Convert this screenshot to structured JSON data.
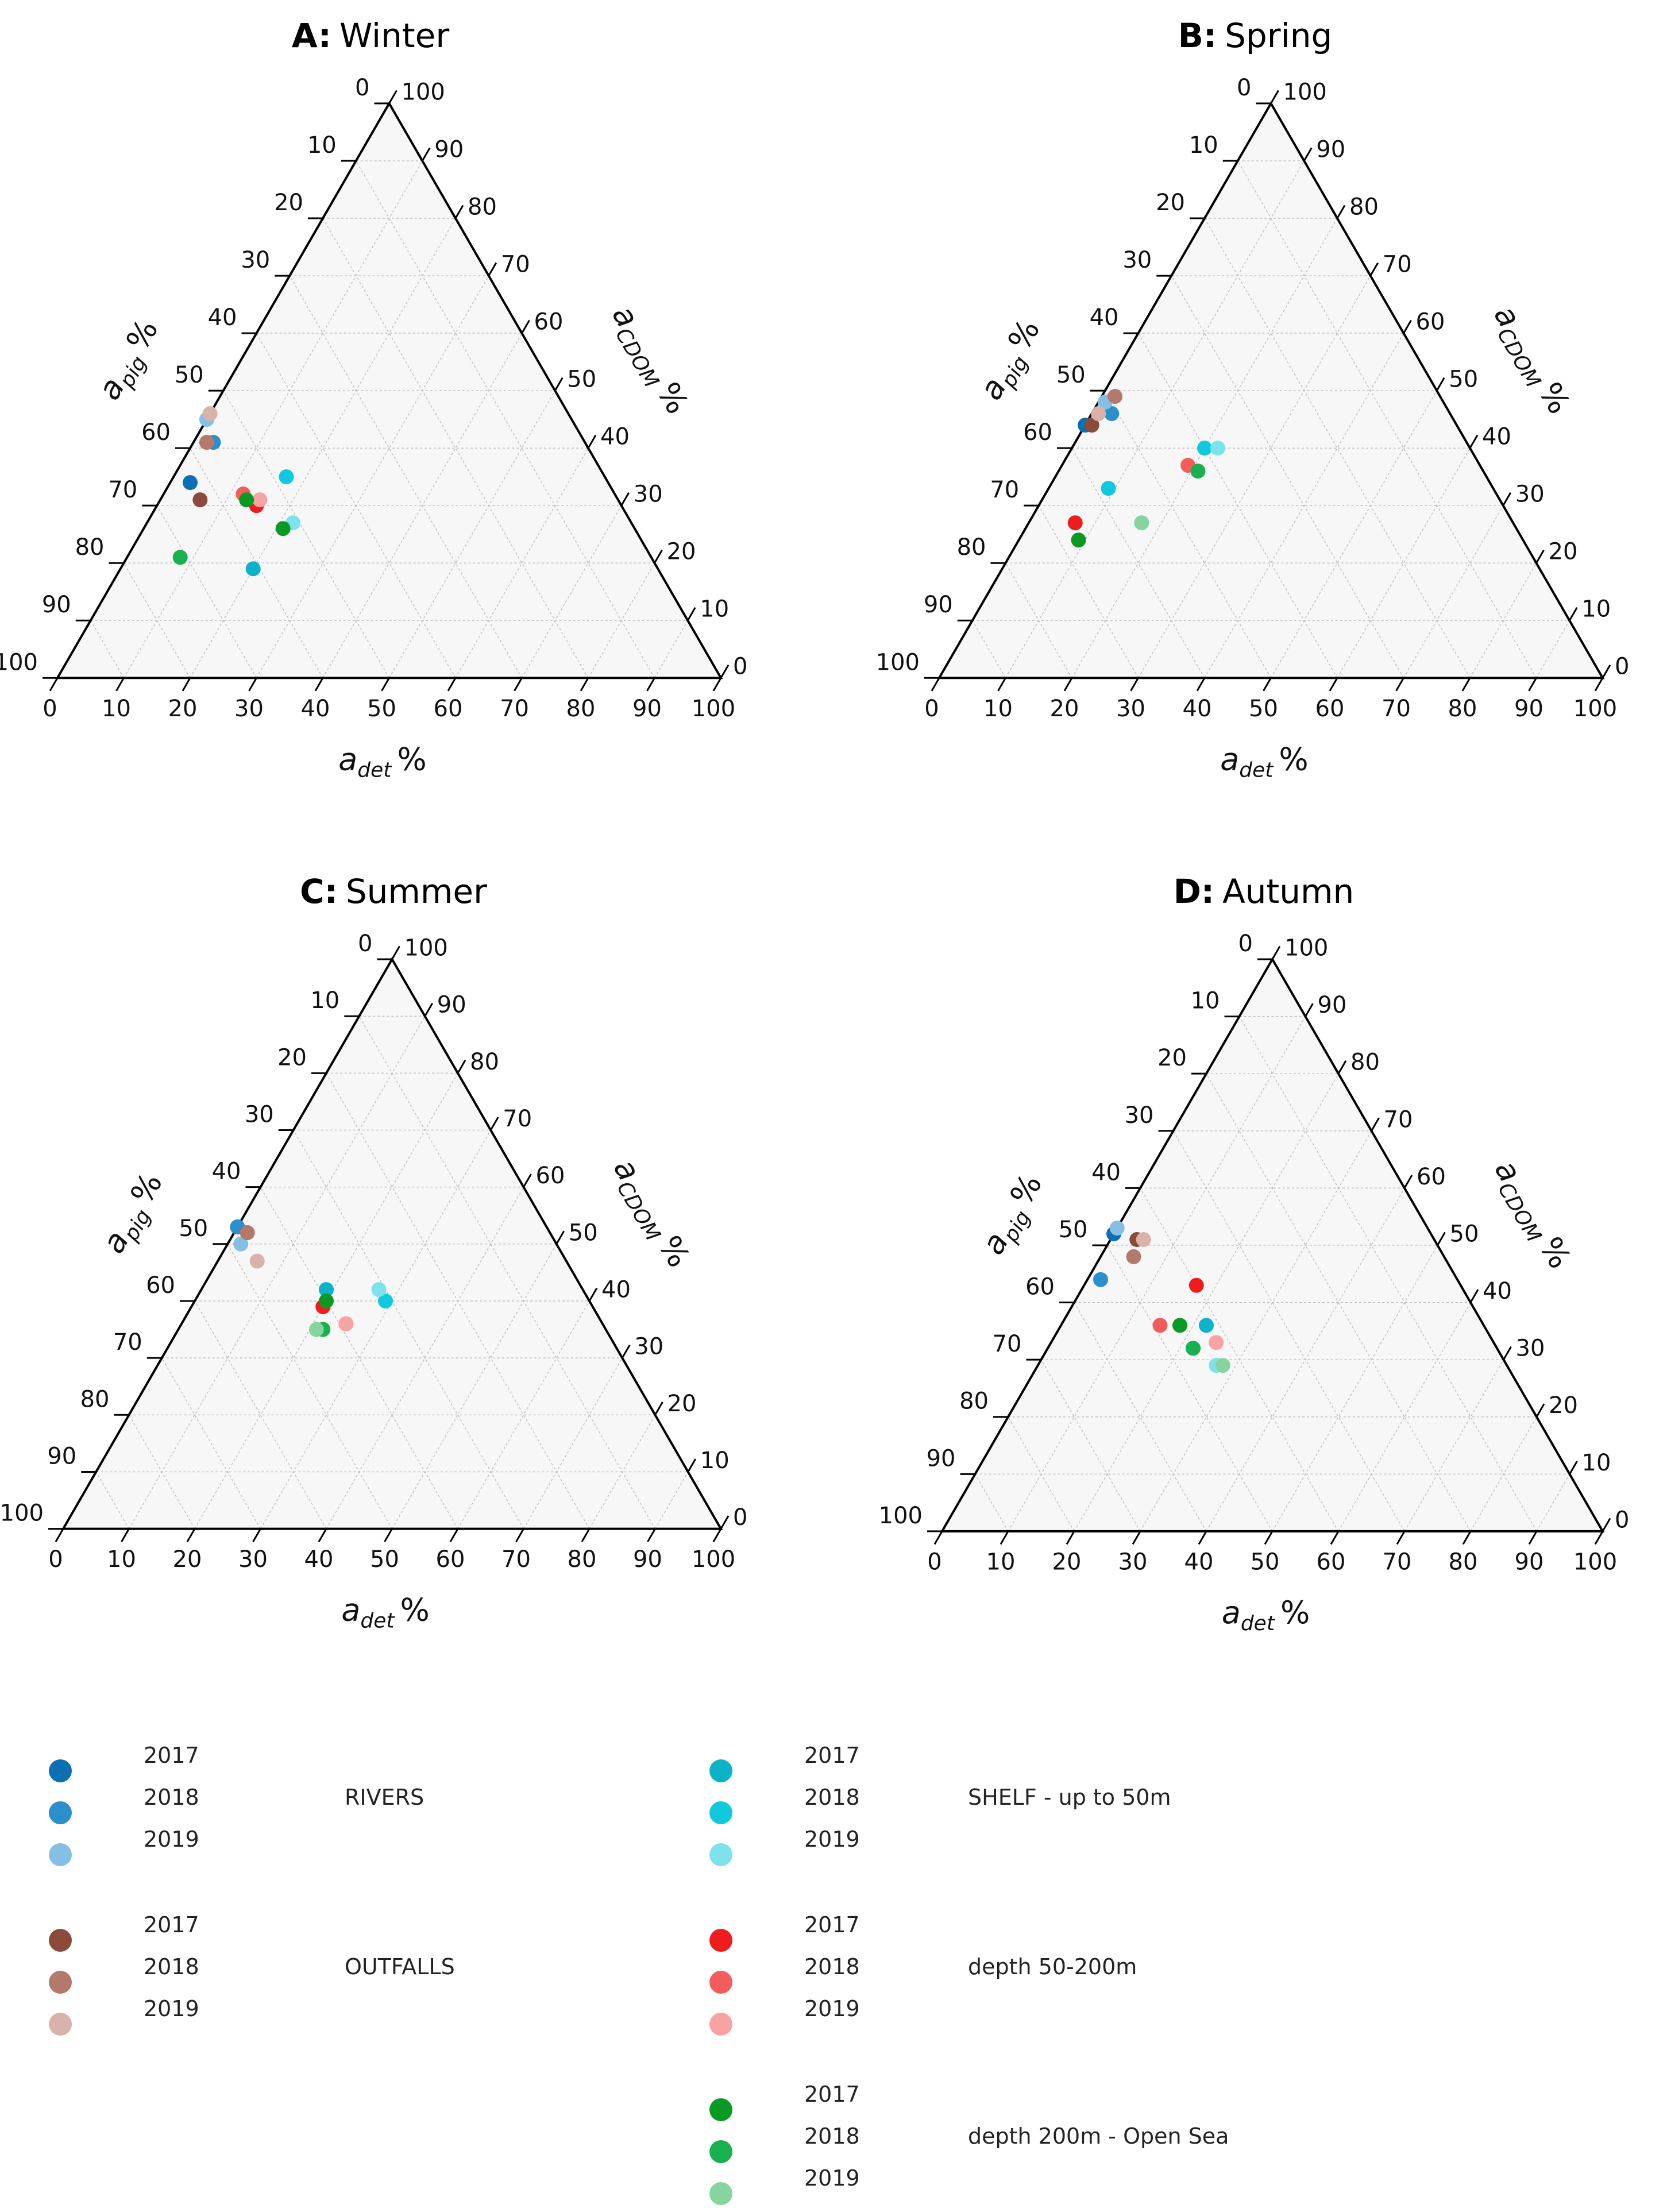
{
  "chart_data": [
    {
      "type": "scatter",
      "subtype": "ternary",
      "panel": "A",
      "title": "Winter",
      "axes": {
        "bottom": "a_det %",
        "left": "a_pig %",
        "right": "a_CDOM %"
      },
      "tick_values": [
        0,
        10,
        20,
        30,
        40,
        50,
        60,
        70,
        80,
        90,
        100
      ],
      "points": [
        {
          "group": "RIVERS",
          "year": "2017",
          "a_pig": 63,
          "a_det": 3,
          "a_cdom": 34
        },
        {
          "group": "RIVERS",
          "year": "2018",
          "a_pig": 56,
          "a_det": 3,
          "a_cdom": 41
        },
        {
          "group": "RIVERS",
          "year": "2019",
          "a_pig": 55,
          "a_det": 0,
          "a_cdom": 45
        },
        {
          "group": "OUTFALLS",
          "year": "2017",
          "a_pig": 63,
          "a_det": 6,
          "a_cdom": 31
        },
        {
          "group": "OUTFALLS",
          "year": "2018",
          "a_pig": 57,
          "a_det": 2,
          "a_cdom": 41
        },
        {
          "group": "OUTFALLS",
          "year": "2019",
          "a_pig": 54,
          "a_det": 0,
          "a_cdom": 46
        },
        {
          "group": "SHELF - up to 50m",
          "year": "2017",
          "a_pig": 61,
          "a_det": 20,
          "a_cdom": 19
        },
        {
          "group": "SHELF - up to 50m",
          "year": "2018",
          "a_pig": 48,
          "a_det": 17,
          "a_cdom": 35
        },
        {
          "group": "SHELF - up to 50m",
          "year": "2019",
          "a_pig": 51,
          "a_det": 22,
          "a_cdom": 27
        },
        {
          "group": "depth 50-200m",
          "year": "2017",
          "a_pig": 55,
          "a_det": 15,
          "a_cdom": 30
        },
        {
          "group": "depth 50-200m",
          "year": "2018",
          "a_pig": 56,
          "a_det": 12,
          "a_cdom": 32
        },
        {
          "group": "depth 50-200m",
          "year": "2019",
          "a_pig": 54,
          "a_det": 15,
          "a_cdom": 31
        },
        {
          "group": "depth 200m - Open Sea",
          "year": "2017",
          "a_pig": 56,
          "a_det": 13,
          "a_cdom": 31
        },
        {
          "group": "depth 200m - Open Sea",
          "year": "2017",
          "a_pig": 53,
          "a_det": 21,
          "a_cdom": 26
        },
        {
          "group": "depth 200m - Open Sea",
          "year": "2018",
          "a_pig": 71,
          "a_det": 8,
          "a_cdom": 21
        }
      ]
    },
    {
      "type": "scatter",
      "subtype": "ternary",
      "panel": "B",
      "title": "Spring",
      "axes": {
        "bottom": "a_det %",
        "left": "a_pig %",
        "right": "a_CDOM %"
      },
      "tick_values": [
        0,
        10,
        20,
        30,
        40,
        50,
        60,
        70,
        80,
        90,
        100
      ],
      "points": [
        {
          "group": "RIVERS",
          "year": "2017",
          "a_pig": 56,
          "a_det": 0,
          "a_cdom": 44
        },
        {
          "group": "RIVERS",
          "year": "2018",
          "a_pig": 51,
          "a_det": 3,
          "a_cdom": 46
        },
        {
          "group": "RIVERS",
          "year": "2019",
          "a_pig": 51,
          "a_det": 1,
          "a_cdom": 48
        },
        {
          "group": "OUTFALLS",
          "year": "2017",
          "a_pig": 55,
          "a_det": 1,
          "a_cdom": 44
        },
        {
          "group": "OUTFALLS",
          "year": "2018",
          "a_pig": 49,
          "a_det": 2,
          "a_cdom": 49
        },
        {
          "group": "OUTFALLS",
          "year": "2019",
          "a_pig": 53,
          "a_det": 1,
          "a_cdom": 46
        },
        {
          "group": "SHELF - up to 50m",
          "year": "2018",
          "a_pig": 58,
          "a_det": 9,
          "a_cdom": 33
        },
        {
          "group": "SHELF - up to 50m",
          "year": "2018",
          "a_pig": 40,
          "a_det": 20,
          "a_cdom": 40
        },
        {
          "group": "SHELF - up to 50m",
          "year": "2019",
          "a_pig": 38,
          "a_det": 22,
          "a_cdom": 40
        },
        {
          "group": "depth 50-200m",
          "year": "2017",
          "a_pig": 66,
          "a_det": 7,
          "a_cdom": 27
        },
        {
          "group": "depth 50-200m",
          "year": "2018",
          "a_pig": 44,
          "a_det": 19,
          "a_cdom": 37
        },
        {
          "group": "depth 50-200m",
          "year": "2019",
          "a_pig": 43,
          "a_det": 21,
          "a_cdom": 36
        },
        {
          "group": "depth 200m - Open Sea",
          "year": "2017",
          "a_pig": 67,
          "a_det": 9,
          "a_cdom": 24
        },
        {
          "group": "depth 200m - Open Sea",
          "year": "2018",
          "a_pig": 43,
          "a_det": 21,
          "a_cdom": 36
        },
        {
          "group": "depth 200m - Open Sea",
          "year": "2019",
          "a_pig": 56,
          "a_det": 17,
          "a_cdom": 27
        }
      ]
    },
    {
      "type": "scatter",
      "subtype": "ternary",
      "panel": "C",
      "title": "Summer",
      "axes": {
        "bottom": "a_det %",
        "left": "a_pig %",
        "right": "a_CDOM %"
      },
      "tick_values": [
        0,
        10,
        20,
        30,
        40,
        50,
        60,
        70,
        80,
        90,
        100
      ],
      "points": [
        {
          "group": "RIVERS",
          "year": "2017",
          "a_pig": 47,
          "a_det": 0,
          "a_cdom": 53
        },
        {
          "group": "RIVERS",
          "year": "2018",
          "a_pig": 47,
          "a_det": 0,
          "a_cdom": 53
        },
        {
          "group": "RIVERS",
          "year": "2019",
          "a_pig": 48,
          "a_det": 2,
          "a_cdom": 50
        },
        {
          "group": "OUTFALLS",
          "year": "2017",
          "a_pig": 46,
          "a_det": 2,
          "a_cdom": 52
        },
        {
          "group": "OUTFALLS",
          "year": "2018",
          "a_pig": 46,
          "a_det": 2,
          "a_cdom": 52
        },
        {
          "group": "OUTFALLS",
          "year": "2019",
          "a_pig": 47,
          "a_det": 6,
          "a_cdom": 47
        },
        {
          "group": "SHELF - up to 50m",
          "year": "2017",
          "a_pig": 39,
          "a_det": 19,
          "a_cdom": 42
        },
        {
          "group": "SHELF - up to 50m",
          "year": "2018",
          "a_pig": 31,
          "a_det": 29,
          "a_cdom": 40
        },
        {
          "group": "SHELF - up to 50m",
          "year": "2019",
          "a_pig": 31,
          "a_det": 27,
          "a_cdom": 42
        },
        {
          "group": "depth 50-200m",
          "year": "2017",
          "a_pig": 41,
          "a_det": 20,
          "a_cdom": 39
        },
        {
          "group": "depth 50-200m",
          "year": "2018",
          "a_pig": 39,
          "a_det": 25,
          "a_cdom": 36
        },
        {
          "group": "depth 50-200m",
          "year": "2019",
          "a_pig": 39,
          "a_det": 25,
          "a_cdom": 36
        },
        {
          "group": "depth 200m - Open Sea",
          "year": "2017",
          "a_pig": 40,
          "a_det": 20,
          "a_cdom": 40
        },
        {
          "group": "depth 200m - Open Sea",
          "year": "2018",
          "a_pig": 43,
          "a_det": 22,
          "a_cdom": 35
        },
        {
          "group": "depth 200m - Open Sea",
          "year": "2019",
          "a_pig": 44,
          "a_det": 21,
          "a_cdom": 35
        }
      ]
    },
    {
      "type": "scatter",
      "subtype": "ternary",
      "panel": "D",
      "title": "Autumn",
      "axes": {
        "bottom": "a_det %",
        "left": "a_pig %",
        "right": "a_CDOM %"
      },
      "tick_values": [
        0,
        10,
        20,
        30,
        40,
        50,
        60,
        70,
        80,
        90,
        100
      ],
      "points": [
        {
          "group": "RIVERS",
          "year": "2017",
          "a_pig": 48,
          "a_det": 0,
          "a_cdom": 52
        },
        {
          "group": "RIVERS",
          "year": "2018",
          "a_pig": 54,
          "a_det": 2,
          "a_cdom": 44
        },
        {
          "group": "RIVERS",
          "year": "2019",
          "a_pig": 47,
          "a_det": 0,
          "a_cdom": 53
        },
        {
          "group": "OUTFALLS",
          "year": "2017",
          "a_pig": 45,
          "a_det": 4,
          "a_cdom": 51
        },
        {
          "group": "OUTFALLS",
          "year": "2018",
          "a_pig": 47,
          "a_det": 5,
          "a_cdom": 48
        },
        {
          "group": "OUTFALLS",
          "year": "2019",
          "a_pig": 44,
          "a_det": 5,
          "a_cdom": 51
        },
        {
          "group": "SHELF - up to 50m",
          "year": "2017",
          "a_pig": 42,
          "a_det": 22,
          "a_cdom": 36
        },
        {
          "group": "SHELF - up to 50m",
          "year": "2018",
          "a_pig": 46,
          "a_det": 22,
          "a_cdom": 32
        },
        {
          "group": "SHELF - up to 50m",
          "year": "2019",
          "a_pig": 44,
          "a_det": 27,
          "a_cdom": 29
        },
        {
          "group": "depth 50-200m",
          "year": "2017",
          "a_pig": 40,
          "a_det": 17,
          "a_cdom": 43
        },
        {
          "group": "depth 50-200m",
          "year": "2018",
          "a_pig": 49,
          "a_det": 15,
          "a_cdom": 36
        },
        {
          "group": "depth 50-200m",
          "year": "2019",
          "a_pig": 42,
          "a_det": 25,
          "a_cdom": 33
        },
        {
          "group": "depth 200m - Open Sea",
          "year": "2017",
          "a_pig": 46,
          "a_det": 18,
          "a_cdom": 36
        },
        {
          "group": "depth 200m - Open Sea",
          "year": "2018",
          "a_pig": 46,
          "a_det": 22,
          "a_cdom": 32
        },
        {
          "group": "depth 200m - Open Sea",
          "year": "2019",
          "a_pig": 43,
          "a_det": 28,
          "a_cdom": 29
        }
      ]
    }
  ],
  "legend": {
    "groups": [
      {
        "name": "RIVERS",
        "entries": [
          {
            "year": "2017",
            "color": "#0a6fb3"
          },
          {
            "year": "2018",
            "color": "#2a8fcb"
          },
          {
            "year": "2019",
            "color": "#86bfe4"
          }
        ]
      },
      {
        "name": "OUTFALLS",
        "entries": [
          {
            "year": "2017",
            "color": "#8b4a3a"
          },
          {
            "year": "2018",
            "color": "#b37a6c"
          },
          {
            "year": "2019",
            "color": "#d9b3aa"
          }
        ]
      },
      {
        "name": "SHELF - up to 50m",
        "entries": [
          {
            "year": "2017",
            "color": "#0ab3c8"
          },
          {
            "year": "2018",
            "color": "#11c9dc"
          },
          {
            "year": "2019",
            "color": "#7de2ec"
          }
        ]
      },
      {
        "name": "depth 50-200m",
        "entries": [
          {
            "year": "2017",
            "color": "#ee1c1c"
          },
          {
            "year": "2018",
            "color": "#f45c5c"
          },
          {
            "year": "2019",
            "color": "#f8a3a3"
          }
        ]
      },
      {
        "name": "depth 200m - Open Sea",
        "entries": [
          {
            "year": "2017",
            "color": "#0a9a24"
          },
          {
            "year": "2018",
            "color": "#19b04f"
          },
          {
            "year": "2019",
            "color": "#86d49e"
          }
        ]
      }
    ]
  },
  "style": {
    "plot_background": "#f7f7f7",
    "grid_color": "#bdbdbd",
    "triangle_stroke": "#000000"
  }
}
